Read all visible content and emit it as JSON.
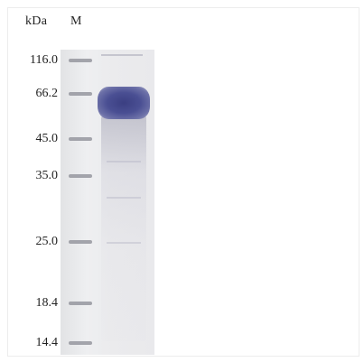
{
  "header": {
    "unit": "kDa",
    "marker_lane": "M"
  },
  "markers": [
    {
      "label": "116.0"
    },
    {
      "label": "66.2"
    },
    {
      "label": "45.0"
    },
    {
      "label": "35.0"
    },
    {
      "label": "25.0"
    },
    {
      "label": "18.4"
    },
    {
      "label": "14.4"
    }
  ],
  "colors": {
    "band": "#3b3f82",
    "gel": "#ebebed",
    "ladder": "#9a9ba3"
  }
}
